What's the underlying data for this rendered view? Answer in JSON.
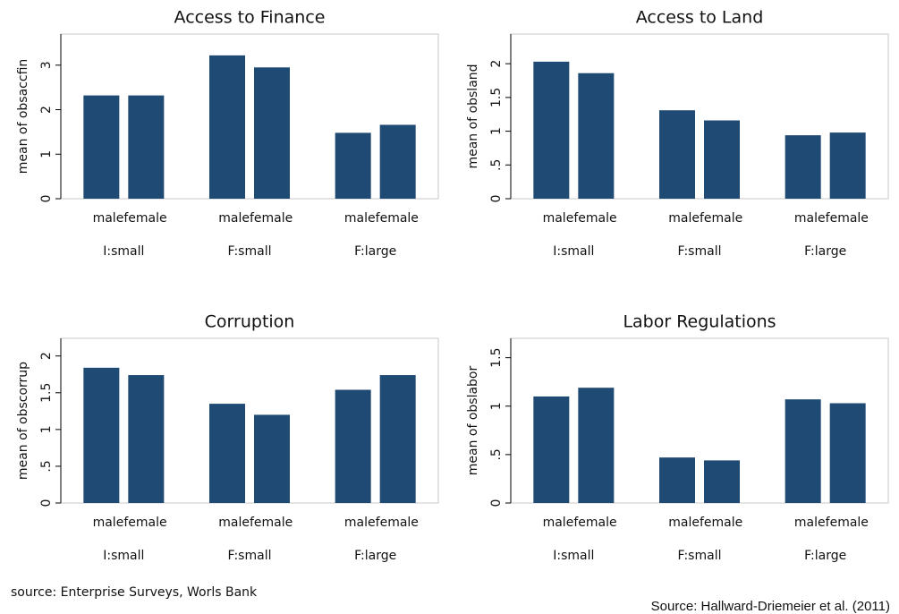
{
  "chart_data": [
    {
      "type": "bar",
      "title": "Access to Finance",
      "ylabel": "mean of obsaccfin",
      "color": "#1f4a73",
      "categories": [
        "male",
        "female",
        "male",
        "female",
        "male",
        "female"
      ],
      "groups": [
        "I:small",
        "F:small",
        "F:large"
      ],
      "values": [
        2.32,
        2.32,
        3.22,
        2.95,
        1.48,
        1.66
      ],
      "ylim": [
        0,
        3.7
      ],
      "yticks": [
        0,
        1,
        2,
        3
      ]
    },
    {
      "type": "bar",
      "title": "Access to Land",
      "ylabel": "mean of obsland",
      "color": "#1f4a73",
      "categories": [
        "male",
        "female",
        "male",
        "female",
        "male",
        "female"
      ],
      "groups": [
        "I:small",
        "F:small",
        "F:large"
      ],
      "values": [
        2.03,
        1.86,
        1.31,
        1.16,
        0.94,
        0.98
      ],
      "ylim": [
        0,
        2.44
      ],
      "yticks": [
        0,
        {
          "value": 0.5,
          "label": ".5"
        },
        1,
        1.5,
        2
      ]
    },
    {
      "type": "bar",
      "title": "Corruption",
      "ylabel": "mean of obscorrup",
      "color": "#1f4a73",
      "categories": [
        "male",
        "female",
        "male",
        "female",
        "male",
        "female"
      ],
      "groups": [
        "I:small",
        "F:small",
        "F:large"
      ],
      "values": [
        1.84,
        1.74,
        1.35,
        1.2,
        1.54,
        1.74
      ],
      "ylim": [
        0,
        2.24
      ],
      "yticks": [
        0,
        {
          "value": 0.5,
          "label": ".5"
        },
        1,
        1.5,
        2
      ]
    },
    {
      "type": "bar",
      "title": "Labor Regulations",
      "ylabel": "mean of obslabor",
      "color": "#1f4a73",
      "categories": [
        "male",
        "female",
        "male",
        "female",
        "male",
        "female"
      ],
      "groups": [
        "I:small",
        "F:small",
        "F:large"
      ],
      "values": [
        1.1,
        1.19,
        0.47,
        0.44,
        1.07,
        1.03
      ],
      "ylim": [
        0,
        1.7
      ],
      "yticks": [
        0,
        {
          "value": 0.5,
          "label": ".5"
        },
        1,
        1.5
      ]
    }
  ],
  "sources": [
    "source: Enterprise Surveys, Worls Bank",
    "Source: Hallward-Driemeier et al. (2011)"
  ]
}
